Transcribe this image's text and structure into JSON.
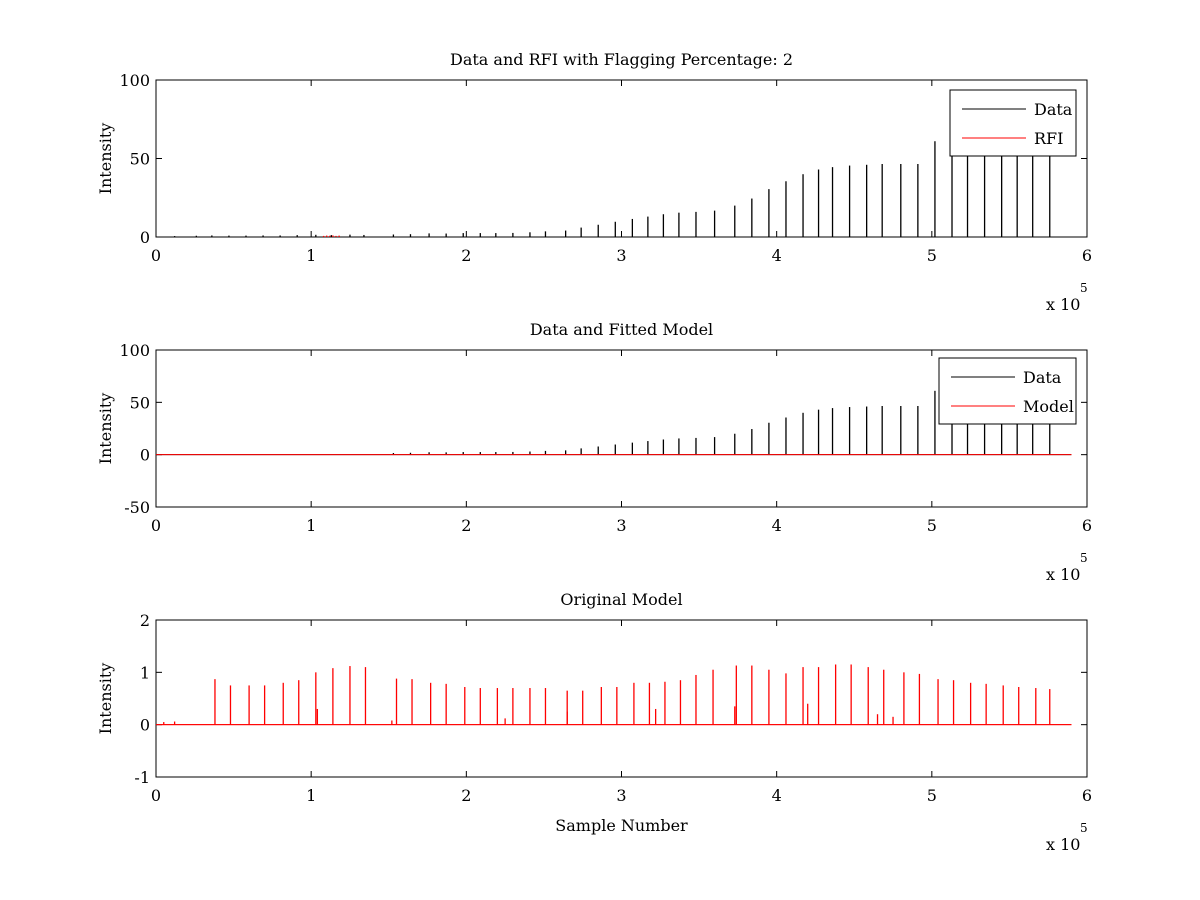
{
  "colors": {
    "data": "#000000",
    "rfi": "#ff0000",
    "model": "#ff0000"
  },
  "chart_data": [
    {
      "type": "line",
      "title": "Data and RFI with Flagging Percentage: 2",
      "xlabel": "",
      "ylabel": "Intensity",
      "xlim": [
        0,
        6
      ],
      "ylim": [
        0,
        100
      ],
      "xticks": [
        "0",
        "1",
        "2",
        "3",
        "4",
        "5",
        "6"
      ],
      "yticks": [
        "0",
        "50",
        "100"
      ],
      "x_exponent": {
        "base": "x 10",
        "power": "5"
      },
      "grid": false,
      "legend": {
        "location": "top-right",
        "entries": [
          "Data",
          "RFI"
        ]
      },
      "series": [
        {
          "name": "Data",
          "color": "#000000",
          "kind": "spikes",
          "x": [
            0.12,
            0.26,
            0.36,
            0.47,
            0.58,
            0.69,
            0.8,
            0.91,
            1.03,
            1.13,
            1.25,
            1.34,
            1.53,
            1.64,
            1.76,
            1.87,
            1.98,
            2.09,
            2.19,
            2.3,
            2.41,
            2.51,
            2.64,
            2.74,
            2.85,
            2.96,
            3.07,
            3.17,
            3.27,
            3.37,
            3.48,
            3.6,
            3.73,
            3.84,
            3.95,
            4.06,
            4.17,
            4.27,
            4.36,
            4.47,
            4.58,
            4.68,
            4.8,
            4.91,
            5.02,
            5.13,
            5.23,
            5.34,
            5.45,
            5.55,
            5.65,
            5.76
          ],
          "y": [
            0.6,
            0.8,
            1.0,
            0.9,
            0.9,
            1.0,
            1.0,
            1.2,
            1.4,
            1.2,
            1.5,
            1.3,
            1.6,
            1.8,
            2.3,
            2.2,
            2.5,
            2.5,
            2.5,
            2.6,
            3.0,
            3.6,
            4.1,
            6.0,
            7.8,
            9.7,
            11.5,
            13.0,
            14.5,
            15.5,
            16.0,
            16.8,
            20.0,
            24.5,
            30.5,
            35.5,
            40.0,
            43.0,
            44.5,
            45.5,
            46.0,
            46.5,
            46.5,
            46.5,
            61.0,
            55.0,
            55.0,
            53.0,
            53.0,
            53.0,
            55.0,
            55.0
          ]
        },
        {
          "name": "RFI",
          "color": "#ff0000",
          "kind": "spikes",
          "x": [
            1.08,
            1.1,
            1.12,
            1.14,
            1.16,
            1.18
          ],
          "y": [
            0.7,
            0.9,
            0.8,
            1.0,
            0.7,
            0.9
          ]
        }
      ]
    },
    {
      "type": "line",
      "title": "Data and Fitted Model",
      "xlabel": "",
      "ylabel": "Intensity",
      "xlim": [
        0,
        6
      ],
      "ylim": [
        -50,
        100
      ],
      "xticks": [
        "0",
        "1",
        "2",
        "3",
        "4",
        "5",
        "6"
      ],
      "yticks": [
        "-50",
        "0",
        "50",
        "100"
      ],
      "x_exponent": {
        "base": "x 10",
        "power": "5"
      },
      "grid": false,
      "legend": {
        "location": "top-right",
        "entries": [
          "Data",
          "Model"
        ]
      },
      "series": [
        {
          "name": "Data",
          "color": "#000000",
          "kind": "spikes",
          "x": [
            1.53,
            1.64,
            1.76,
            1.87,
            1.98,
            2.09,
            2.19,
            2.3,
            2.41,
            2.51,
            2.64,
            2.74,
            2.85,
            2.96,
            3.07,
            3.17,
            3.27,
            3.37,
            3.48,
            3.6,
            3.73,
            3.84,
            3.95,
            4.06,
            4.17,
            4.27,
            4.36,
            4.47,
            4.58,
            4.68,
            4.8,
            4.91,
            5.02,
            5.13,
            5.23,
            5.34,
            5.45,
            5.55,
            5.65,
            5.76
          ],
          "y": [
            1.6,
            1.8,
            2.3,
            2.2,
            2.5,
            2.5,
            2.5,
            2.6,
            3.0,
            3.6,
            4.1,
            6.0,
            7.8,
            9.7,
            11.5,
            13.0,
            14.5,
            15.5,
            16.0,
            16.8,
            20.0,
            24.5,
            30.5,
            35.5,
            40.0,
            43.0,
            44.5,
            45.5,
            46.0,
            46.5,
            46.5,
            46.5,
            61.0,
            55.0,
            55.0,
            53.0,
            53.0,
            53.0,
            55.0,
            55.0
          ]
        },
        {
          "name": "Model",
          "color": "#ff0000",
          "kind": "line",
          "x": [
            0,
            5.9
          ],
          "y": [
            0,
            0
          ]
        }
      ]
    },
    {
      "type": "line",
      "title": "Original Model",
      "xlabel": "Sample Number",
      "ylabel": "Intensity",
      "xlim": [
        0,
        6
      ],
      "ylim": [
        -1,
        2
      ],
      "xticks": [
        "0",
        "1",
        "2",
        "3",
        "4",
        "5",
        "6"
      ],
      "yticks": [
        "-1",
        "0",
        "1",
        "2"
      ],
      "x_exponent": {
        "base": "x 10",
        "power": "5"
      },
      "grid": false,
      "legend": null,
      "series": [
        {
          "color": "#ff0000",
          "kind": "spikes",
          "x": [
            0.38,
            0.48,
            0.6,
            0.7,
            0.82,
            0.92,
            1.03,
            1.14,
            1.25,
            1.35,
            1.55,
            1.65,
            1.77,
            1.87,
            1.99,
            2.09,
            2.2,
            2.3,
            2.41,
            2.51,
            2.65,
            2.75,
            2.87,
            2.97,
            3.08,
            3.18,
            3.28,
            3.38,
            3.48,
            3.59,
            3.74,
            3.84,
            3.95,
            4.06,
            4.17,
            4.27,
            4.38,
            4.48,
            4.59,
            4.69,
            4.82,
            4.92,
            5.04,
            5.14,
            5.25,
            5.35,
            5.46,
            5.56,
            5.67,
            5.76
          ],
          "y": [
            0.87,
            0.75,
            0.75,
            0.75,
            0.8,
            0.85,
            1.0,
            1.08,
            1.12,
            1.1,
            0.88,
            0.87,
            0.8,
            0.78,
            0.72,
            0.7,
            0.7,
            0.7,
            0.7,
            0.7,
            0.65,
            0.65,
            0.72,
            0.72,
            0.8,
            0.8,
            0.82,
            0.85,
            0.95,
            1.05,
            1.13,
            1.13,
            1.05,
            0.98,
            1.1,
            1.1,
            1.15,
            1.15,
            1.1,
            1.05,
            1.0,
            0.97,
            0.87,
            0.85,
            0.8,
            0.78,
            0.75,
            0.72,
            0.7,
            0.68
          ]
        },
        {
          "color": "#ff0000",
          "kind": "spikes",
          "x": [
            0.05,
            0.12,
            1.04,
            1.52,
            2.25,
            2.65,
            3.22,
            3.73,
            4.2,
            4.65,
            4.75
          ],
          "y": [
            0.05,
            0.06,
            0.3,
            0.08,
            0.12,
            0.25,
            0.3,
            0.35,
            0.4,
            0.2,
            0.15
          ]
        },
        {
          "color": "#ff0000",
          "kind": "line",
          "x": [
            0,
            5.9
          ],
          "y": [
            0,
            0
          ]
        }
      ]
    }
  ]
}
